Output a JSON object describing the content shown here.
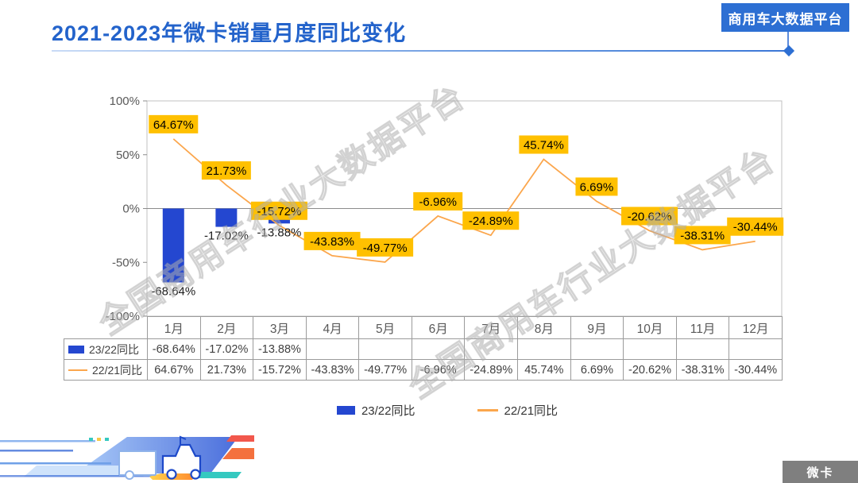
{
  "header": {
    "title": "2021-2023年微卡销量月度同比变化",
    "badge": "商用车大数据平台"
  },
  "watermark": {
    "text": "全国商用车行业大数据平台"
  },
  "footer": {
    "tag": "微卡"
  },
  "colors": {
    "title_blue": "#2363cb",
    "badge_blue": "#2d6fd3",
    "bar_blue": "#2447d0",
    "line_orange": "#fba64c",
    "label_box_yellow": "#ffc000",
    "tag_gray": "#7f7f7f"
  },
  "legend": {
    "items": [
      {
        "label": "23/22同比",
        "type": "bar"
      },
      {
        "label": "22/21同比",
        "type": "line"
      }
    ]
  },
  "chart_data": {
    "type": "bar+line combo",
    "title": "2021-2023年微卡销量月度同比变化",
    "categories": [
      "1月",
      "2月",
      "3月",
      "4月",
      "5月",
      "6月",
      "7月",
      "8月",
      "9月",
      "10月",
      "11月",
      "12月"
    ],
    "series": [
      {
        "name": "23/22同比",
        "type": "bar",
        "color": "#2447d0",
        "values": [
          -68.64,
          -17.02,
          -13.88,
          null,
          null,
          null,
          null,
          null,
          null,
          null,
          null,
          null
        ],
        "labels": [
          "-68.64%",
          "-17.02%",
          "-13.88%",
          null,
          null,
          null,
          null,
          null,
          null,
          null,
          null,
          null
        ]
      },
      {
        "name": "22/21同比",
        "type": "line",
        "color": "#fba64c",
        "values": [
          64.67,
          21.73,
          -15.72,
          -43.83,
          -49.77,
          -6.96,
          -24.89,
          45.74,
          6.69,
          -20.62,
          -38.31,
          -30.44
        ],
        "labels": [
          "64.67%",
          "21.73%",
          "-15.72%",
          "-43.83%",
          "-49.77%",
          "-6.96%",
          "-24.89%",
          "45.74%",
          "6.69%",
          "-20.62%",
          "-38.31%",
          "-30.44%"
        ]
      }
    ],
    "ylim": [
      -100,
      100
    ],
    "yticks": [
      {
        "value": 100,
        "label": "100%"
      },
      {
        "value": 50,
        "label": "50%"
      },
      {
        "value": 0,
        "label": "0%"
      },
      {
        "value": -50,
        "label": "-50%"
      },
      {
        "value": -100,
        "label": "-100%"
      }
    ],
    "grid": "zero-line only, outer border",
    "legend_position": "bottom",
    "value_suffix": "%"
  },
  "table": {
    "columns": [
      "1月",
      "2月",
      "3月",
      "4月",
      "5月",
      "6月",
      "7月",
      "8月",
      "9月",
      "10月",
      "11月",
      "12月"
    ],
    "rows": [
      {
        "label": "23/22同比",
        "key": "bar",
        "values": [
          "-68.64%",
          "-17.02%",
          "-13.88%",
          "",
          "",
          "",
          "",
          "",
          "",
          "",
          "",
          ""
        ]
      },
      {
        "label": "22/21同比",
        "key": "line",
        "values": [
          "64.67%",
          "21.73%",
          "-15.72%",
          "-43.83%",
          "-49.77%",
          "-6.96%",
          "-24.89%",
          "45.74%",
          "6.69%",
          "-20.62%",
          "-38.31%",
          "-30.44%"
        ]
      }
    ]
  }
}
